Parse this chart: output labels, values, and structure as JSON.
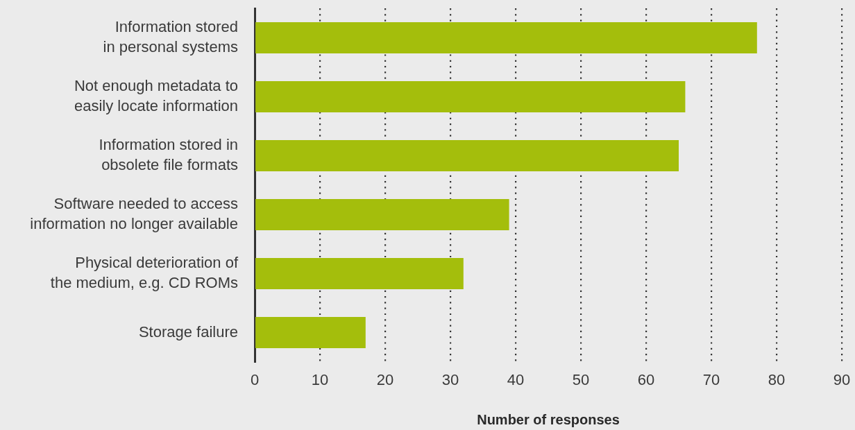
{
  "chart_data": {
    "type": "bar",
    "orientation": "horizontal",
    "categories": [
      "Information stored in personal systems",
      "Not enough metadata to easily locate information",
      "Information stored in obsolete file formats",
      "Software needed to access information no longer available",
      "Physical deterioration of the medium, e.g. CD ROMs",
      "Storage failure"
    ],
    "values": [
      77,
      66,
      65,
      39,
      32,
      17
    ],
    "color": "#a4be0c",
    "xlabel": "Number of responses",
    "xlim": [
      0,
      90
    ],
    "xticks": [
      0,
      10,
      20,
      30,
      40,
      50,
      60,
      70,
      80,
      90
    ],
    "grid": "x"
  }
}
